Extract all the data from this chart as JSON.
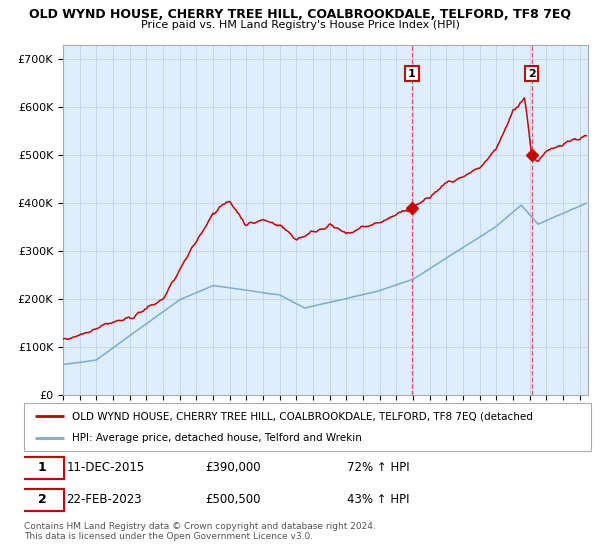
{
  "title": "OLD WYND HOUSE, CHERRY TREE HILL, COALBROOKDALE, TELFORD, TF8 7EQ",
  "subtitle": "Price paid vs. HM Land Registry's House Price Index (HPI)",
  "xlim_start": 1995.0,
  "xlim_end": 2026.5,
  "ylim": [
    0,
    730000
  ],
  "yticks": [
    0,
    100000,
    200000,
    300000,
    400000,
    500000,
    600000,
    700000
  ],
  "ytick_labels": [
    "£0",
    "£100K",
    "£200K",
    "£300K",
    "£400K",
    "£500K",
    "£600K",
    "£700K"
  ],
  "sale1_x": 2015.94,
  "sale1_y": 390000,
  "sale1_label": "1",
  "sale1_date": "11-DEC-2015",
  "sale1_price": "£390,000",
  "sale1_hpi": "72% ↑ HPI",
  "sale2_x": 2023.13,
  "sale2_y": 500500,
  "sale2_label": "2",
  "sale2_date": "22-FEB-2023",
  "sale2_price": "£500,500",
  "sale2_hpi": "43% ↑ HPI",
  "line_color_red": "#cc0000",
  "line_color_blue": "#7aadcf",
  "bg_color": "#ddeeff",
  "grid_color": "#bbccdd",
  "legend_line1": "OLD WYND HOUSE, CHERRY TREE HILL, COALBROOKDALE, TELFORD, TF8 7EQ (detached",
  "legend_line2": "HPI: Average price, detached house, Telford and Wrekin",
  "footer": "Contains HM Land Registry data © Crown copyright and database right 2024.\nThis data is licensed under the Open Government Licence v3.0."
}
